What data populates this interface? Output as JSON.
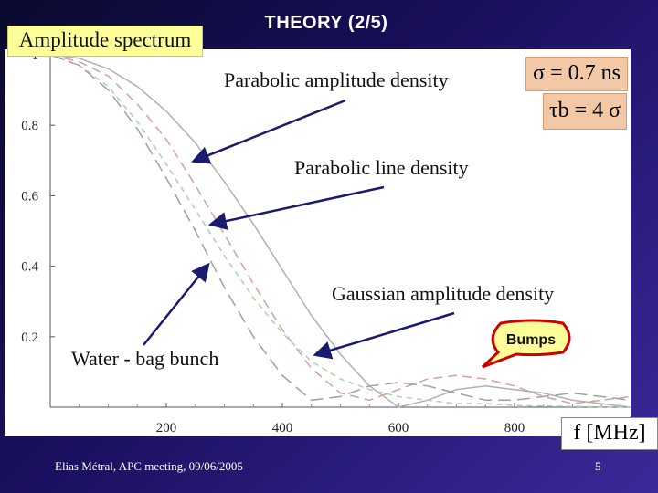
{
  "slide": {
    "title": "THEORY (2/5)",
    "footer_text": "Elias Métral, APC meeting, 09/06/2005",
    "page_number": "5",
    "background_color": "#1a1060"
  },
  "formulas": {
    "sigma": "σ = 0.7 ns",
    "tau": "τb = 4 σ",
    "x_unit": "f [MHz]"
  },
  "callout": {
    "text": "Bumps",
    "fill_color": "#ffff99",
    "border_color": "#cc0000"
  },
  "chart_data": {
    "type": "line",
    "title": "Amplitude spectrum",
    "xlabel": "f [MHz]",
    "ylabel": "",
    "xlim": [
      0,
      1000
    ],
    "ylim": [
      0,
      1
    ],
    "x_ticks": [
      200,
      400,
      600,
      800
    ],
    "y_ticks": [
      0.2,
      0.4,
      0.6,
      0.8,
      1
    ],
    "grid": false,
    "series": [
      {
        "name": "Parabolic amplitude density",
        "color": "#b0b0b0",
        "dash": "",
        "x": [
          0,
          50,
          100,
          150,
          200,
          250,
          300,
          350,
          400,
          450,
          500,
          550,
          600,
          650,
          700,
          750,
          800,
          850,
          900,
          950,
          1000
        ],
        "y": [
          1,
          0.99,
          0.96,
          0.91,
          0.84,
          0.75,
          0.64,
          0.52,
          0.39,
          0.26,
          0.15,
          0.06,
          0.0,
          0.02,
          0.05,
          0.06,
          0.05,
          0.04,
          0.02,
          0.01,
          0.0
        ]
      },
      {
        "name": "Parabolic line density",
        "color": "#d4a0a0",
        "dash": "10 6",
        "x": [
          0,
          50,
          100,
          150,
          200,
          250,
          300,
          350,
          400,
          450,
          500,
          550,
          600,
          650,
          700,
          750,
          800,
          850,
          900,
          950,
          1000
        ],
        "y": [
          1,
          0.98,
          0.94,
          0.86,
          0.76,
          0.63,
          0.49,
          0.35,
          0.22,
          0.11,
          0.04,
          0.02,
          0.05,
          0.08,
          0.09,
          0.08,
          0.06,
          0.03,
          0.01,
          0.02,
          0.03
        ]
      },
      {
        "name": "Gaussian amplitude density",
        "color": "#a8d4a8",
        "dash": "6 5",
        "x": [
          0,
          50,
          100,
          150,
          200,
          250,
          300,
          350,
          400,
          450,
          500,
          550,
          600,
          650,
          700,
          750,
          800,
          850,
          900,
          950,
          1000
        ],
        "y": [
          1,
          0.97,
          0.91,
          0.81,
          0.69,
          0.56,
          0.43,
          0.31,
          0.21,
          0.13,
          0.08,
          0.05,
          0.03,
          0.02,
          0.01,
          0.01,
          0.005,
          0.003,
          0.002,
          0.001,
          0.0
        ]
      },
      {
        "name": "Water - bag bunch",
        "color": "#a0a0a0",
        "dash": "14 7",
        "x": [
          0,
          50,
          100,
          150,
          200,
          250,
          300,
          350,
          400,
          450,
          500,
          550,
          600,
          650,
          700,
          750,
          800,
          850,
          900,
          950,
          1000
        ],
        "y": [
          1,
          0.97,
          0.9,
          0.79,
          0.65,
          0.5,
          0.34,
          0.2,
          0.09,
          0.02,
          0.03,
          0.06,
          0.07,
          0.06,
          0.04,
          0.02,
          0.02,
          0.03,
          0.04,
          0.03,
          0.02
        ]
      }
    ],
    "annotations": [
      {
        "label": "Parabolic amplitude density",
        "arrow_to": [
          250,
          0.7
        ]
      },
      {
        "label": "Parabolic line density",
        "arrow_to": [
          280,
          0.52
        ]
      },
      {
        "label": "Gaussian amplitude density",
        "arrow_to": [
          460,
          0.15
        ]
      },
      {
        "label": "Water - bag bunch",
        "arrow_to": [
          270,
          0.4
        ]
      }
    ]
  }
}
